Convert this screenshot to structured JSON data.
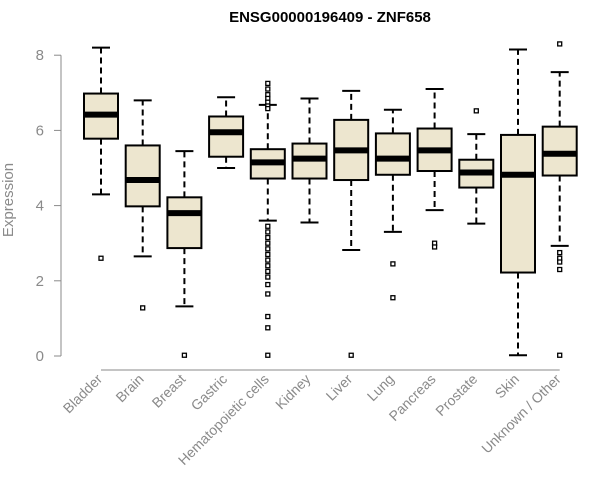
{
  "chart_data": {
    "type": "boxplot",
    "title": "ENSG00000196409 - ZNF658",
    "ylabel": "Expression",
    "xlabel": "",
    "ylim": [
      0,
      8.5
    ],
    "yticks": [
      0,
      2,
      4,
      6,
      8
    ],
    "grid": false,
    "legend": "none",
    "colors": {
      "box_fill": "#ede6cf",
      "median": "#000000",
      "axis": "#8a8a8a",
      "text": "#8a8a8a"
    },
    "categories": [
      "Bladder",
      "Brain",
      "Breast",
      "Gastric",
      "Hematopoietic cells",
      "Kidney",
      "Liver",
      "Lung",
      "Pancreas",
      "Prostate",
      "Skin",
      "Unknown / Other"
    ],
    "boxes": [
      {
        "q1": 5.78,
        "median": 6.42,
        "q3": 6.98,
        "whisker_low": 4.3,
        "whisker_high": 8.2,
        "outliers": [
          2.6
        ]
      },
      {
        "q1": 3.98,
        "median": 4.68,
        "q3": 5.6,
        "whisker_low": 2.65,
        "whisker_high": 6.8,
        "outliers": [
          1.28
        ]
      },
      {
        "q1": 2.87,
        "median": 3.8,
        "q3": 4.22,
        "whisker_low": 1.32,
        "whisker_high": 5.45,
        "outliers": [
          0.02
        ]
      },
      {
        "q1": 5.3,
        "median": 5.95,
        "q3": 6.37,
        "whisker_low": 5.0,
        "whisker_high": 6.88,
        "outliers": []
      },
      {
        "q1": 4.72,
        "median": 5.15,
        "q3": 5.5,
        "whisker_low": 3.6,
        "whisker_high": 6.68,
        "outliers": [
          7.25,
          7.1,
          6.95,
          6.85,
          6.75,
          6.65,
          6.58,
          3.45,
          3.3,
          3.15,
          3.0,
          2.85,
          2.7,
          2.55,
          2.4,
          2.25,
          2.1,
          1.9,
          1.65,
          1.05,
          0.75,
          0.02
        ]
      },
      {
        "q1": 4.72,
        "median": 5.25,
        "q3": 5.65,
        "whisker_low": 3.55,
        "whisker_high": 6.85,
        "outliers": []
      },
      {
        "q1": 4.68,
        "median": 5.47,
        "q3": 6.28,
        "whisker_low": 2.82,
        "whisker_high": 7.05,
        "outliers": [
          0.02
        ]
      },
      {
        "q1": 4.82,
        "median": 5.25,
        "q3": 5.92,
        "whisker_low": 3.3,
        "whisker_high": 6.55,
        "outliers": [
          2.45,
          1.55
        ]
      },
      {
        "q1": 4.92,
        "median": 5.47,
        "q3": 6.05,
        "whisker_low": 3.88,
        "whisker_high": 7.1,
        "outliers": [
          3.0,
          2.9
        ]
      },
      {
        "q1": 4.48,
        "median": 4.88,
        "q3": 5.22,
        "whisker_low": 3.52,
        "whisker_high": 5.9,
        "outliers": [
          6.52
        ]
      },
      {
        "q1": 2.22,
        "median": 4.82,
        "q3": 5.88,
        "whisker_low": 0.02,
        "whisker_high": 8.15,
        "outliers": []
      },
      {
        "q1": 4.8,
        "median": 5.38,
        "q3": 6.1,
        "whisker_low": 2.93,
        "whisker_high": 7.55,
        "outliers": [
          8.3,
          2.75,
          2.6,
          2.5,
          2.3,
          0.02
        ]
      }
    ]
  }
}
